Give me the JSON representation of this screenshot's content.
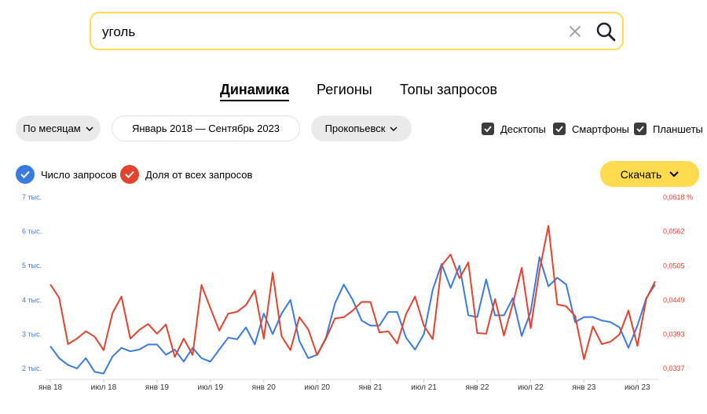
{
  "search": {
    "value": "уголь"
  },
  "tabs": [
    {
      "label": "Динамика",
      "active": true
    },
    {
      "label": "Регионы",
      "active": false
    },
    {
      "label": "Топы запросов",
      "active": false
    }
  ],
  "filters": {
    "period_type": "По месяцам",
    "date_range": "Январь 2018 — Сентябрь 2023",
    "region": "Прокопьевск"
  },
  "devices": [
    {
      "label": "Десктопы",
      "checked": true
    },
    {
      "label": "Смартфоны",
      "checked": true
    },
    {
      "label": "Планшеты",
      "checked": true
    }
  ],
  "download_label": "Скачать",
  "colors": {
    "accent": "#ffdb4d",
    "series_count": "#3a7be0",
    "series_share": "#e4432d"
  },
  "chart_data": {
    "type": "line",
    "x": [
      "2018-01",
      "2018-02",
      "2018-03",
      "2018-04",
      "2018-05",
      "2018-06",
      "2018-07",
      "2018-08",
      "2018-09",
      "2018-10",
      "2018-11",
      "2018-12",
      "2019-01",
      "2019-02",
      "2019-03",
      "2019-04",
      "2019-05",
      "2019-06",
      "2019-07",
      "2019-08",
      "2019-09",
      "2019-10",
      "2019-11",
      "2019-12",
      "2020-01",
      "2020-02",
      "2020-03",
      "2020-04",
      "2020-05",
      "2020-06",
      "2020-07",
      "2020-08",
      "2020-09",
      "2020-10",
      "2020-11",
      "2020-12",
      "2021-01",
      "2021-02",
      "2021-03",
      "2021-04",
      "2021-05",
      "2021-06",
      "2021-07",
      "2021-08",
      "2021-09",
      "2021-10",
      "2021-11",
      "2021-12",
      "2022-01",
      "2022-02",
      "2022-03",
      "2022-04",
      "2022-05",
      "2022-06",
      "2022-07",
      "2022-08",
      "2022-09",
      "2022-10",
      "2022-11",
      "2022-12",
      "2023-01",
      "2023-02",
      "2023-03",
      "2023-04",
      "2023-05",
      "2023-06",
      "2023-07",
      "2023-08",
      "2023-09"
    ],
    "x_tick_labels": [
      "янв 18",
      "июл 18",
      "янв 19",
      "июл 19",
      "янв 20",
      "июл 20",
      "янв 21",
      "июл 21",
      "янв 22",
      "июл 22",
      "янв 23",
      "июл 23"
    ],
    "series": [
      {
        "name": "Число запросов",
        "color": "#3a7be0",
        "axis": "left",
        "values": [
          2650,
          2300,
          2100,
          2000,
          2300,
          1900,
          1850,
          2350,
          2600,
          2500,
          2550,
          2700,
          2700,
          2400,
          2550,
          2200,
          2600,
          2300,
          2200,
          2550,
          2900,
          2850,
          3200,
          2700,
          3600,
          3000,
          3600,
          4000,
          2800,
          2300,
          2400,
          2900,
          3900,
          4450,
          4000,
          3400,
          3250,
          3250,
          3650,
          3650,
          2900,
          2550,
          3000,
          4300,
          5050,
          4350,
          5000,
          3550,
          3500,
          4600,
          3550,
          3550,
          4050,
          2950,
          3650,
          5250,
          4400,
          4650,
          4450,
          3350,
          3500,
          3500,
          3400,
          3350,
          3200,
          2600,
          3250,
          4050,
          4450
        ]
      },
      {
        "name": "Доля от всех запросов",
        "color": "#e4432d",
        "axis": "right",
        "values": [
          0.0475,
          0.0453,
          0.0377,
          0.0386,
          0.0398,
          0.0389,
          0.0367,
          0.0428,
          0.0455,
          0.0386,
          0.04,
          0.041,
          0.0394,
          0.0409,
          0.0356,
          0.0386,
          0.0359,
          0.0474,
          0.0436,
          0.0399,
          0.0427,
          0.043,
          0.0441,
          0.0465,
          0.0386,
          0.0494,
          0.039,
          0.0367,
          0.0421,
          0.0401,
          0.0359,
          0.0386,
          0.0419,
          0.0421,
          0.0432,
          0.0446,
          0.0446,
          0.0396,
          0.0398,
          0.0378,
          0.0426,
          0.0455,
          0.0407,
          0.0385,
          0.0506,
          0.0524,
          0.0485,
          0.0511,
          0.0395,
          0.0394,
          0.0451,
          0.0391,
          0.0443,
          0.0502,
          0.0403,
          0.0498,
          0.0571,
          0.0442,
          0.0439,
          0.0423,
          0.0352,
          0.0406,
          0.0377,
          0.0381,
          0.0393,
          0.0432,
          0.0374,
          0.0451,
          0.048
        ]
      }
    ],
    "y_left": {
      "ticks": [
        2000,
        3000,
        4000,
        5000,
        6000,
        7000
      ],
      "tick_labels": [
        "2 тыс.",
        "3 тыс.",
        "4 тыс.",
        "5 тыс.",
        "6 тыс.",
        "7 тыс."
      ],
      "range": [
        2000,
        7000
      ]
    },
    "y_right": {
      "ticks": [
        0.0337,
        0.0393,
        0.0449,
        0.0505,
        0.0562,
        0.0618
      ],
      "tick_labels": [
        "0,0337",
        "0,0393",
        "0,0449",
        "0,0505",
        "0,0562",
        "0,0618 %"
      ],
      "range": [
        0.0337,
        0.0618
      ]
    },
    "grid": false,
    "legend": "top-left"
  }
}
